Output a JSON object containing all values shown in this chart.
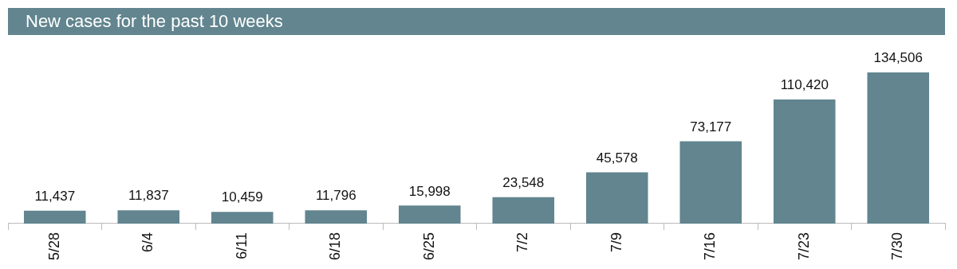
{
  "chart_data": {
    "type": "bar",
    "title": "New cases for the past 10 weeks",
    "categories": [
      "5/28",
      "6/4",
      "6/11",
      "6/18",
      "6/25",
      "7/2",
      "7/9",
      "7/16",
      "7/23",
      "7/30"
    ],
    "values": [
      11437,
      11837,
      10459,
      11796,
      15998,
      23548,
      45578,
      73177,
      110420,
      134506
    ],
    "value_labels": [
      "11,437",
      "11,837",
      "10,459",
      "11,796",
      "15,998",
      "23,548",
      "45,578",
      "73,177",
      "110,420",
      "134,506"
    ],
    "color": "#62858f",
    "grid": false,
    "legend": false
  }
}
